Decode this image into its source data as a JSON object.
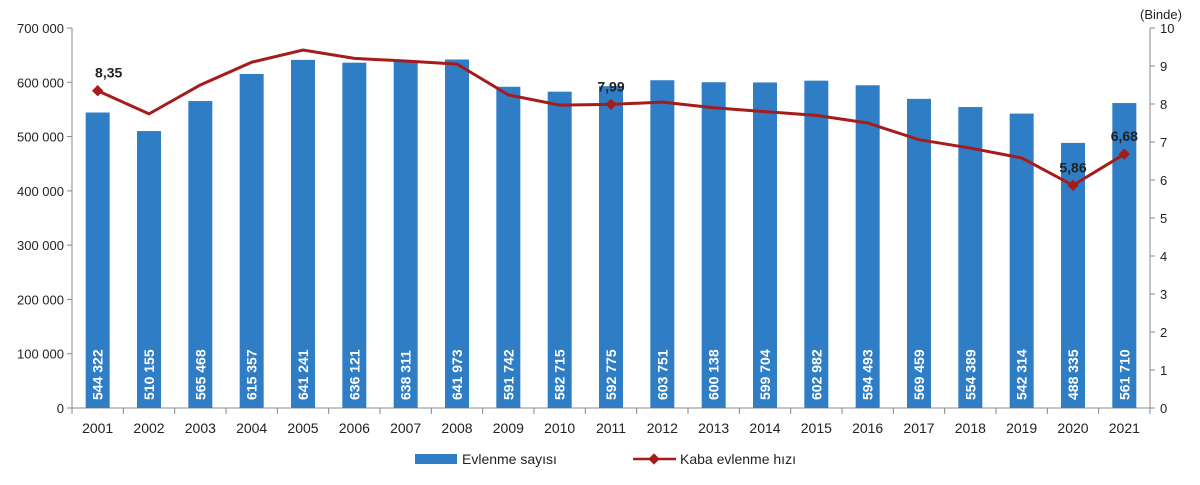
{
  "chart_data": {
    "type": "bar",
    "categories": [
      "2001",
      "2002",
      "2003",
      "2004",
      "2005",
      "2006",
      "2007",
      "2008",
      "2009",
      "2010",
      "2011",
      "2012",
      "2013",
      "2014",
      "2015",
      "2016",
      "2017",
      "2018",
      "2019",
      "2020",
      "2021"
    ],
    "series": [
      {
        "name": "Evlenme sayısı",
        "type": "bar",
        "axis": "left",
        "color": "#2f7dc4",
        "values": [
          544322,
          510155,
          565468,
          615357,
          641241,
          636121,
          638311,
          641973,
          591742,
          582715,
          592775,
          603751,
          600138,
          599704,
          602982,
          594493,
          569459,
          554389,
          542314,
          488335,
          561710
        ],
        "labels": [
          "544 322",
          "510 155",
          "565 468",
          "615 357",
          "641 241",
          "636 121",
          "638 311",
          "641 973",
          "591 742",
          "582 715",
          "592 775",
          "603 751",
          "600 138",
          "599 704",
          "602 982",
          "594 493",
          "569 459",
          "554 389",
          "542 314",
          "488 335",
          "561 710"
        ]
      },
      {
        "name": "Kaba evlenme hızı",
        "type": "line",
        "axis": "right",
        "color": "#a51c1c",
        "values": [
          8.35,
          7.74,
          8.5,
          9.1,
          9.42,
          9.2,
          9.13,
          9.05,
          8.24,
          7.97,
          7.99,
          8.05,
          7.9,
          7.8,
          7.7,
          7.5,
          7.06,
          6.84,
          6.58,
          5.86,
          6.68
        ],
        "annotations": [
          {
            "category": "2001",
            "label": "8,35"
          },
          {
            "category": "2011",
            "label": "7,99"
          },
          {
            "category": "2020",
            "label": "5,86"
          },
          {
            "category": "2021",
            "label": "6,68"
          }
        ]
      }
    ],
    "y_left": {
      "range": [
        0,
        700000
      ],
      "ticks": [
        0,
        100000,
        200000,
        300000,
        400000,
        500000,
        600000,
        700000
      ],
      "tick_labels": [
        "0",
        "100 000",
        "200 000",
        "300 000",
        "400 000",
        "500 000",
        "600 000",
        "700 000"
      ]
    },
    "y_right": {
      "range": [
        0,
        10
      ],
      "ticks": [
        0,
        1,
        2,
        3,
        4,
        5,
        6,
        7,
        8,
        9,
        10
      ],
      "unit_label": "(Binde)"
    },
    "grid": false,
    "legend_placement": "bottom"
  }
}
